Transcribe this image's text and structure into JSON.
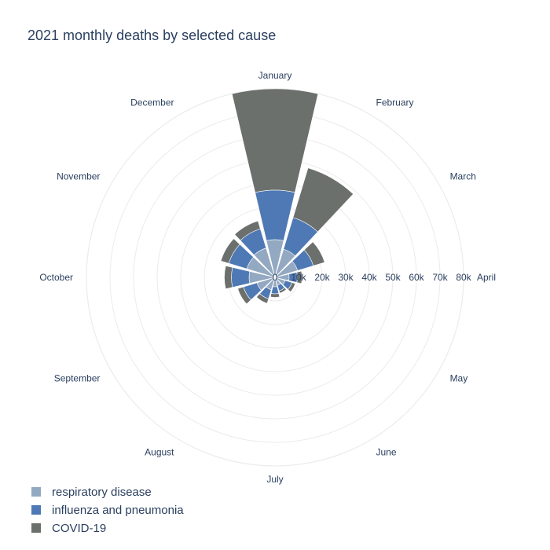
{
  "chart_data": {
    "type": "barpolar",
    "title": "2021 monthly deaths by selected cause",
    "angular_categories": [
      "January",
      "February",
      "March",
      "April",
      "May",
      "June",
      "July",
      "August",
      "September",
      "October",
      "November",
      "December"
    ],
    "angular_direction": "clockwise",
    "angular_rotation": "January at top",
    "radial_range": [
      0,
      80000
    ],
    "radial_ticks": [
      {
        "value": 0,
        "label": "0"
      },
      {
        "value": 10000,
        "label": "10k"
      },
      {
        "value": 20000,
        "label": "20k"
      },
      {
        "value": 30000,
        "label": "30k"
      },
      {
        "value": 40000,
        "label": "40k"
      },
      {
        "value": 50000,
        "label": "50k"
      },
      {
        "value": 60000,
        "label": "60k"
      },
      {
        "value": 70000,
        "label": "70k"
      },
      {
        "value": 80000,
        "label": "80k"
      }
    ],
    "stacked": true,
    "legend_position": "bottom-left",
    "series": [
      {
        "name": "respiratory disease",
        "color": "#93a8c1",
        "values": [
          16000,
          12500,
          10000,
          6000,
          4500,
          3500,
          4000,
          5500,
          8000,
          11000,
          12500,
          13000
        ]
      },
      {
        "name": "influenza and pneumonia",
        "color": "#4f79b4",
        "values": [
          21000,
          14000,
          7000,
          3500,
          3000,
          2500,
          3000,
          4000,
          6000,
          7500,
          8000,
          8500
        ]
      },
      {
        "name": "COVID-19",
        "color": "#6b706d",
        "values": [
          43000,
          22000,
          5000,
          2000,
          1500,
          1000,
          1500,
          2000,
          2500,
          3000,
          3500,
          3500
        ]
      }
    ]
  }
}
